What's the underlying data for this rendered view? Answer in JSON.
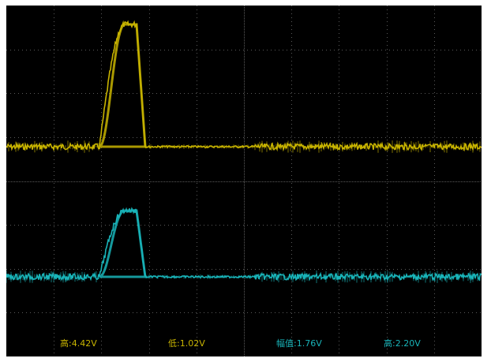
{
  "colors": {
    "background": "#000000",
    "grid": "#5a5a5a",
    "channel1": "#c8b400",
    "channel2": "#19b4b9"
  },
  "channels": [
    {
      "id": "ch1",
      "color": "#c8b400"
    },
    {
      "id": "ch2",
      "color": "#19b4b9"
    }
  ],
  "measurements": [
    {
      "text": "高:4.42V",
      "color": "#c8b400"
    },
    {
      "text": "低:1.02V",
      "color": "#c8b400"
    },
    {
      "text": "幅值:1.76V",
      "color": "#19b4b9"
    },
    {
      "text": "高:2.20V",
      "color": "#19b4b9"
    }
  ]
}
